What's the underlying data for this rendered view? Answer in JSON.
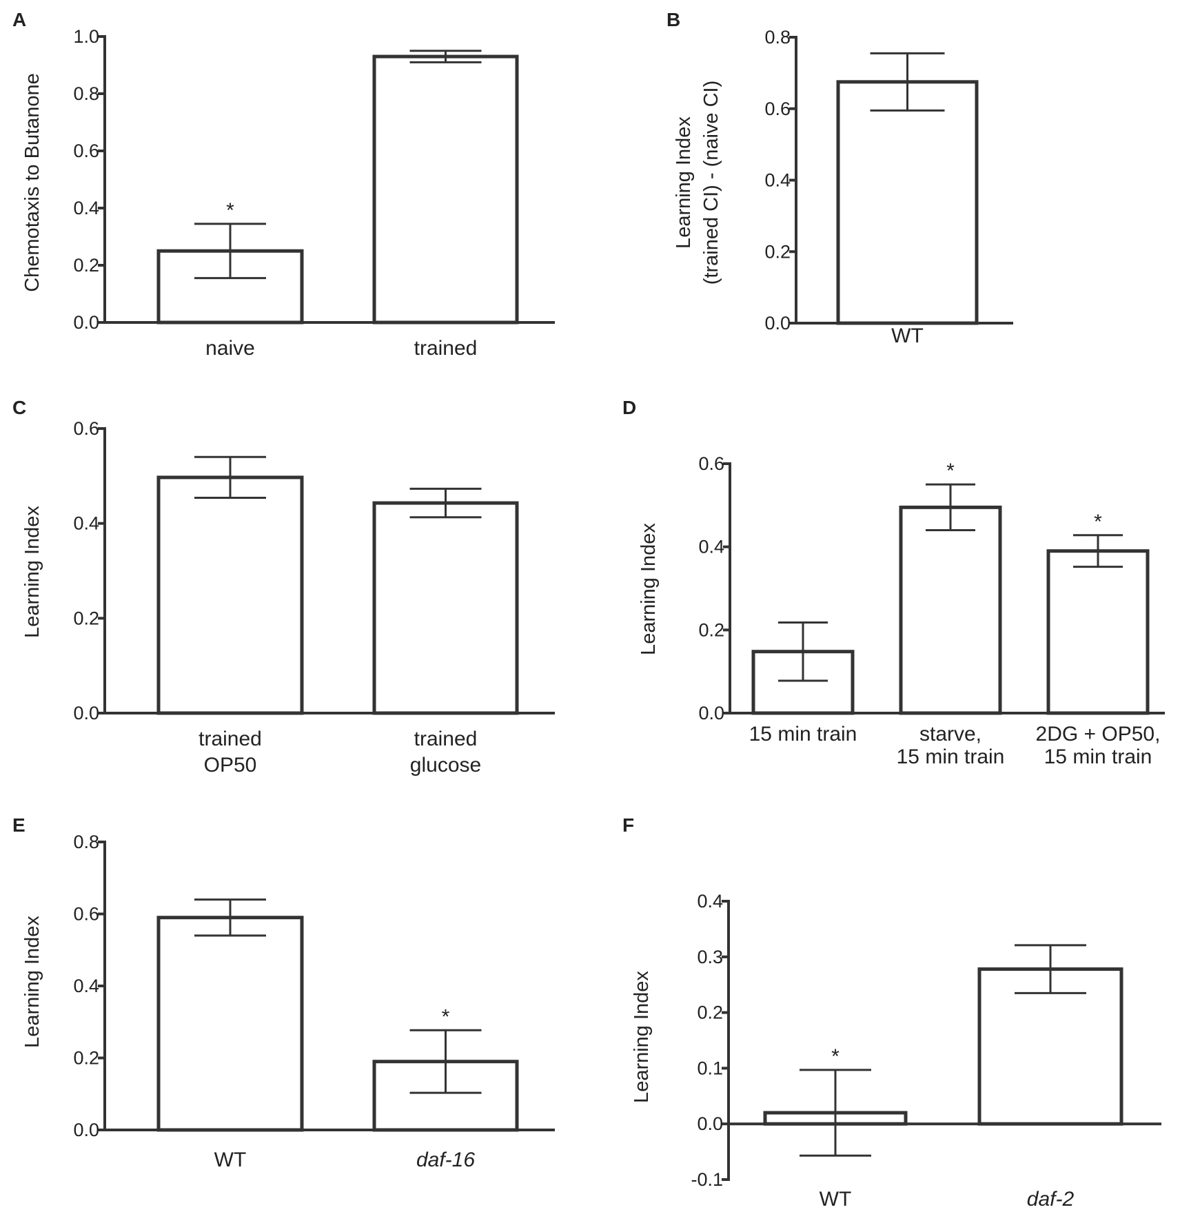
{
  "colors": {
    "stroke": "#333333",
    "text": "#222222",
    "star": "#555555",
    "bar_fill": "#ffffff"
  },
  "chart_data": [
    {
      "panel": "A",
      "type": "bar",
      "ylabel": [
        "Chemotaxis to Butanone"
      ],
      "ylim": [
        0,
        1.0
      ],
      "ticks": [
        0.0,
        0.2,
        0.4,
        0.6,
        0.8,
        1.0
      ],
      "tick_labels": [
        "0.0",
        "0.2",
        "0.4",
        "0.6",
        "0.8",
        "1.0"
      ],
      "categories": [
        [
          "naive"
        ],
        [
          "trained"
        ]
      ],
      "values": [
        0.25,
        0.93
      ],
      "errors": [
        0.095,
        0.02
      ],
      "significance": [
        "*",
        ""
      ]
    },
    {
      "panel": "B",
      "type": "bar",
      "ylabel": [
        "Learning Index",
        "(trained CI) - (naive CI)"
      ],
      "ylim": [
        0,
        0.8
      ],
      "ticks": [
        0.0,
        0.2,
        0.4,
        0.6,
        0.8
      ],
      "tick_labels": [
        "0.0",
        "0.2",
        "0.4",
        "0.6",
        "0.8"
      ],
      "categories": [
        [
          "WT"
        ]
      ],
      "values": [
        0.675
      ],
      "errors": [
        0.08
      ],
      "significance": [
        ""
      ]
    },
    {
      "panel": "C",
      "type": "bar",
      "ylabel": [
        "Learning Index"
      ],
      "ylim": [
        0,
        0.6
      ],
      "ticks": [
        0.0,
        0.2,
        0.4,
        0.6
      ],
      "tick_labels": [
        "0.0",
        "0.2",
        "0.4",
        "0.6"
      ],
      "categories": [
        [
          "trained",
          "OP50"
        ],
        [
          "trained",
          "glucose"
        ]
      ],
      "values": [
        0.497,
        0.443
      ],
      "errors": [
        0.043,
        0.03
      ],
      "significance": [
        "",
        ""
      ]
    },
    {
      "panel": "D",
      "type": "bar",
      "ylabel": [
        "Learning Index"
      ],
      "ylim": [
        0,
        0.6
      ],
      "ticks": [
        0.0,
        0.2,
        0.4,
        0.6
      ],
      "tick_labels": [
        "0.0",
        "0.2",
        "0.4",
        "0.6"
      ],
      "categories": [
        [
          "15 min train"
        ],
        [
          "starve,",
          "15 min train"
        ],
        [
          "2DG + OP50,",
          "15 min train"
        ]
      ],
      "values": [
        0.148,
        0.495,
        0.39
      ],
      "errors": [
        0.07,
        0.055,
        0.038
      ],
      "significance": [
        "",
        "*",
        "*"
      ]
    },
    {
      "panel": "E",
      "type": "bar",
      "ylabel": [
        "Learning Index"
      ],
      "ylim": [
        0,
        0.8
      ],
      "ticks": [
        0.0,
        0.2,
        0.4,
        0.6,
        0.8
      ],
      "tick_labels": [
        "0.0",
        "0.2",
        "0.4",
        "0.6",
        "0.8"
      ],
      "categories": [
        [
          "WT"
        ],
        [
          "daf-16"
        ]
      ],
      "italic_categories": [
        false,
        true
      ],
      "values": [
        0.59,
        0.19
      ],
      "errors": [
        0.05,
        0.087
      ],
      "significance": [
        "",
        "*"
      ]
    },
    {
      "panel": "F",
      "type": "bar",
      "ylabel": [
        "Learning Index"
      ],
      "ylim": [
        -0.1,
        0.4
      ],
      "ticks": [
        -0.1,
        0.0,
        0.1,
        0.2,
        0.3,
        0.4
      ],
      "tick_labels": [
        "-0.1",
        "0.0",
        "0.1",
        "0.2",
        "0.3",
        "0.4"
      ],
      "categories": [
        [
          "WT"
        ],
        [
          "daf-2"
        ]
      ],
      "italic_categories": [
        false,
        true
      ],
      "values": [
        0.02,
        0.278
      ],
      "errors": [
        0.077,
        0.043
      ],
      "significance": [
        "*",
        ""
      ]
    }
  ]
}
